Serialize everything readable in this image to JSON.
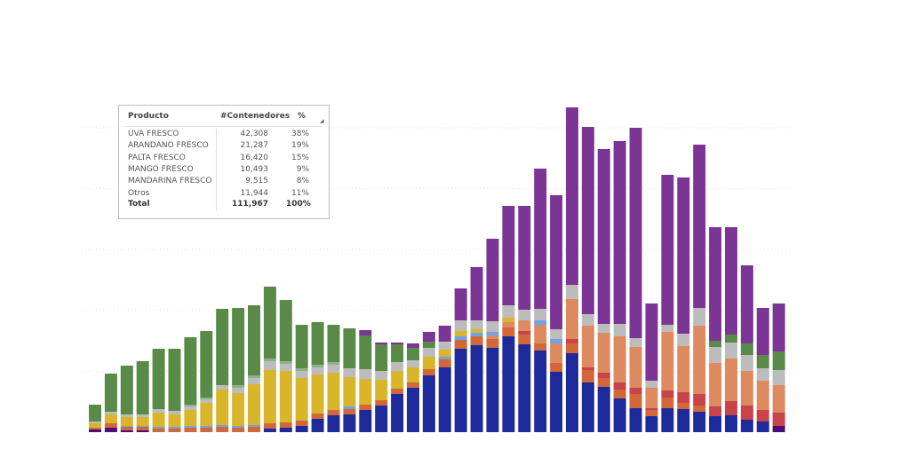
{
  "table": {
    "headers": [
      "Producto",
      "#Contenedores",
      "%"
    ],
    "rows": [
      {
        "producto": "UVA FRESCO",
        "contenedores": "42,308",
        "pct": "38%"
      },
      {
        "producto": "ARANDANO FRESCO",
        "contenedores": "21,287",
        "pct": "19%"
      },
      {
        "producto": "PALTA FRESCO",
        "contenedores": "16,420",
        "pct": "15%"
      },
      {
        "producto": "MANGO FRESCO",
        "contenedores": "10,493",
        "pct": "9%"
      },
      {
        "producto": "MANDARINA FRESCO",
        "contenedores": "9,515",
        "pct": "8%"
      },
      {
        "producto": "Otros",
        "contenedores": "11,944",
        "pct": "11%"
      }
    ],
    "total": {
      "producto": "Total",
      "contenedores": "111,967",
      "pct": "100%"
    }
  },
  "chart_data": {
    "type": "bar",
    "stacked": true,
    "title": "",
    "xlabel": "",
    "ylabel": "",
    "ylim": [
      0,
      370
    ],
    "gridlines": [
      68.6,
      137.2,
      205.8,
      274.4,
      343
    ],
    "series_order": [
      "dpurple",
      "blue",
      "dorange",
      "red",
      "salmon",
      "lblue",
      "yellow",
      "gray",
      "lgreen",
      "green",
      "purple"
    ],
    "colors": {
      "dpurple": "#4a0e78",
      "blue": "#1f2a9a",
      "dorange": "#d2673a",
      "red": "#c9434b",
      "salmon": "#de8a60",
      "lblue": "#6fa3e6",
      "yellow": "#d9b52c",
      "gray": "#bcbcbc",
      "lgreen": "#8bb38a",
      "green": "#5a8a48",
      "purple": "#7a3595"
    },
    "bars": [
      {
        "dpurple": 3,
        "dorange": 2,
        "yellow": 5,
        "gray": 2,
        "green": 19
      },
      {
        "dpurple": 5,
        "dorange": 5,
        "yellow": 10,
        "gray": 3,
        "green": 43
      },
      {
        "dpurple": 2,
        "dorange": 4,
        "lblue": 1,
        "yellow": 10,
        "gray": 3,
        "green": 55
      },
      {
        "dpurple": 2,
        "dorange": 4,
        "lblue": 1,
        "yellow": 10,
        "gray": 3,
        "green": 60
      },
      {
        "dorange": 4,
        "lblue": 2,
        "yellow": 16,
        "gray": 4,
        "green": 68
      },
      {
        "dorange": 4,
        "lblue": 2,
        "yellow": 14,
        "gray": 4,
        "green": 70
      },
      {
        "dorange": 5,
        "lblue": 2,
        "yellow": 18,
        "gray": 4,
        "lgreen": 2,
        "green": 76
      },
      {
        "dorange": 5,
        "lblue": 2,
        "yellow": 26,
        "gray": 4,
        "lgreen": 2,
        "green": 75
      },
      {
        "dorange": 6,
        "lblue": 2,
        "yellow": 40,
        "gray": 5,
        "green": 86
      },
      {
        "dorange": 5,
        "lblue": 2,
        "yellow": 37,
        "gray": 6,
        "lgreen": 3,
        "green": 87
      },
      {
        "dorange": 6,
        "lblue": 2,
        "yellow": 46,
        "gray": 7,
        "lgreen": 3,
        "green": 79
      },
      {
        "blue": 4,
        "dorange": 6,
        "yellow": 60,
        "gray": 10,
        "lgreen": 3,
        "green": 81
      },
      {
        "blue": 5,
        "dorange": 6,
        "yellow": 58,
        "gray": 8,
        "lgreen": 3,
        "green": 69
      },
      {
        "blue": 7,
        "dorange": 6,
        "yellow": 48,
        "gray": 8,
        "lgreen": 3,
        "green": 49
      },
      {
        "blue": 15,
        "dorange": 6,
        "yellow": 44,
        "gray": 8,
        "lgreen": 3,
        "green": 48
      },
      {
        "blue": 19,
        "dorange": 6,
        "yellow": 42,
        "gray": 9,
        "lgreen": 3,
        "green": 42
      },
      {
        "blue": 20,
        "dorange": 6,
        "lblue": 3,
        "yellow": 33,
        "gray": 10,
        "green": 45
      },
      {
        "blue": 25,
        "dorange": 6,
        "yellow": 29,
        "gray": 11,
        "green": 38,
        "purple": 6
      },
      {
        "blue": 30,
        "dorange": 6,
        "yellow": 23,
        "gray": 10,
        "green": 30,
        "purple": 2
      },
      {
        "blue": 43,
        "dorange": 6,
        "yellow": 20,
        "gray": 10,
        "green": 20,
        "purple": 2
      },
      {
        "blue": 50,
        "dorange": 6,
        "yellow": 17,
        "gray": 8,
        "green": 14,
        "purple": 5
      },
      {
        "blue": 64,
        "dorange": 7,
        "yellow": 14,
        "gray": 10,
        "green": 7,
        "purple": 11
      },
      {
        "blue": 73,
        "dorange": 9,
        "lblue": 3,
        "yellow": 8,
        "gray": 9,
        "purple": 18
      },
      {
        "blue": 94,
        "dorange": 10,
        "lblue": 4,
        "yellow": 6,
        "gray": 12,
        "purple": 36
      },
      {
        "blue": 98,
        "dorange": 10,
        "lblue": 4,
        "yellow": 4,
        "gray": 10,
        "purple": 60
      },
      {
        "blue": 95,
        "dorange": 10,
        "lblue": 4,
        "salmon": 4,
        "gray": 12,
        "purple": 93
      },
      {
        "blue": 108,
        "dorange": 10,
        "salmon": 6,
        "yellow": 5,
        "gray": 14,
        "purple": 112
      },
      {
        "blue": 99,
        "dorange": 11,
        "red": 4,
        "salmon": 12,
        "gray": 12,
        "purple": 117
      },
      {
        "blue": 92,
        "dorange": 8,
        "lblue": 5,
        "salmon": 21,
        "gray": 13,
        "purple": 158
      },
      {
        "blue": 68,
        "dorange": 10,
        "lblue": 5,
        "salmon": 22,
        "gray": 11,
        "purple": 151
      },
      {
        "blue": 89,
        "dorange": 11,
        "red": 5,
        "salmon": 45,
        "gray": 16,
        "purple": 200
      },
      {
        "blue": 56,
        "dorange": 14,
        "red": 3,
        "salmon": 47,
        "gray": 13,
        "purple": 211
      },
      {
        "blue": 51,
        "dorange": 10,
        "red": 6,
        "salmon": 45,
        "gray": 10,
        "purple": 197
      },
      {
        "blue": 38,
        "dorange": 10,
        "red": 8,
        "salmon": 52,
        "gray": 14,
        "purple": 206
      },
      {
        "blue": 27,
        "dorange": 16,
        "red": 7,
        "salmon": 46,
        "gray": 10,
        "purple": 237
      },
      {
        "blue": 18,
        "dorange": 7,
        "red": 2,
        "salmon": 23,
        "gray": 8,
        "purple": 87
      },
      {
        "blue": 27,
        "dorange": 12,
        "red": 8,
        "salmon": 66,
        "gray": 8,
        "purple": 169
      },
      {
        "blue": 26,
        "dorange": 7,
        "red": 12,
        "salmon": 52,
        "gray": 14,
        "purple": 176
      },
      {
        "blue": 23,
        "dorange": 7,
        "red": 13,
        "salmon": 77,
        "gray": 20,
        "purple": 184
      },
      {
        "blue": 18,
        "red": 11,
        "salmon": 49,
        "gray": 18,
        "green": 7,
        "purple": 128
      },
      {
        "blue": 19,
        "red": 16,
        "salmon": 48,
        "gray": 18,
        "green": 9,
        "purple": 121
      },
      {
        "blue": 14,
        "red": 16,
        "salmon": 39,
        "gray": 18,
        "green": 13,
        "purple": 88
      },
      {
        "blue": 12,
        "red": 13,
        "salmon": 33,
        "gray": 14,
        "green": 15,
        "purple": 53
      },
      {
        "dpurple": 7,
        "red": 15,
        "salmon": 31,
        "gray": 17,
        "green": 21,
        "purple": 54
      }
    ]
  }
}
